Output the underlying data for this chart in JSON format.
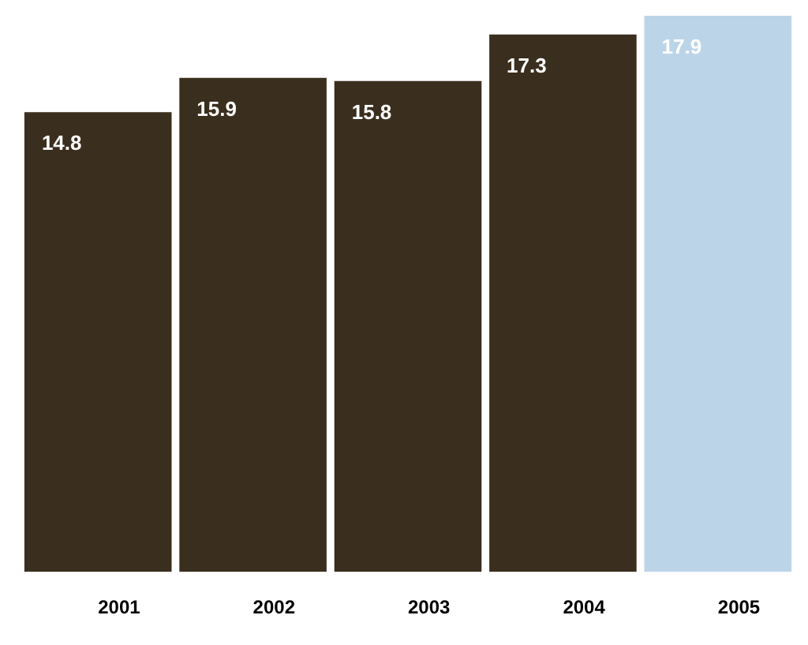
{
  "chart_data": {
    "type": "bar",
    "categories": [
      "2001",
      "2002",
      "2003",
      "2004",
      "2005"
    ],
    "values": [
      14.8,
      15.9,
      15.8,
      17.3,
      17.9
    ],
    "colors": [
      "#3a2e1e",
      "#3a2e1e",
      "#3a2e1e",
      "#3a2e1e",
      "#bcd4e8"
    ],
    "data_labels": true,
    "grid": false,
    "legend": false
  }
}
